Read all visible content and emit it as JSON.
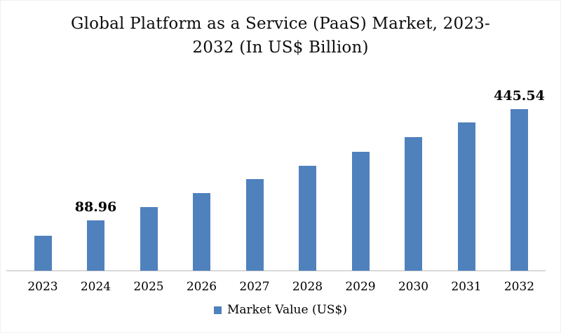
{
  "title": {
    "text": "Global Platform as a Service (PaaS) Market, 2023-2032 (In US$ Billion)",
    "line1": "Global Platform as a Service (PaaS) Market, 2023-",
    "line2": "2032 (In US$ Billion)"
  },
  "legend": {
    "label": "Market Value (US$)",
    "marker_color": "#4f81bd"
  },
  "chart_data": {
    "type": "bar",
    "title": "Global Platform as a Service (PaaS) Market, 2023-2032 (In US$ Billion)",
    "unit": "US$ Billion",
    "categories": [
      "2023",
      "2024",
      "2025",
      "2026",
      "2027",
      "2028",
      "2029",
      "2030",
      "2031",
      "2032"
    ],
    "series": [
      {
        "name": "Market Value (US$)",
        "values": [
          null,
          88.96,
          null,
          null,
          null,
          null,
          null,
          null,
          null,
          445.54
        ]
      }
    ],
    "data_labels": [
      {
        "category": "2024",
        "text": "88.96"
      },
      {
        "category": "2032",
        "text": "445.54"
      }
    ],
    "bar_relative_heights": [
      0.216,
      0.312,
      0.394,
      0.481,
      0.567,
      0.649,
      0.736,
      0.827,
      0.918,
      1.0
    ],
    "bar_color": "#4f81bd",
    "axis_line_color": "#d9d9d9",
    "gridlines": false,
    "y_axis_visible": false,
    "x_axis_labels_visible": true,
    "legend_position": "bottom"
  }
}
